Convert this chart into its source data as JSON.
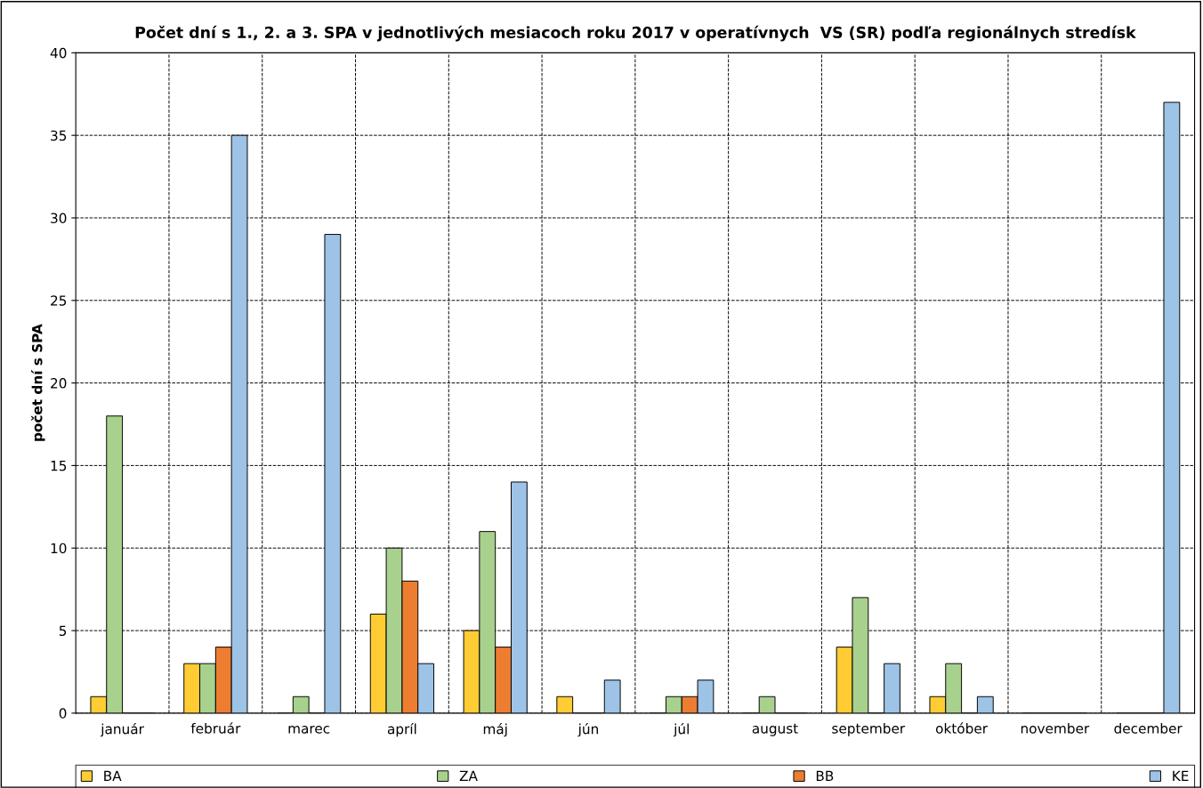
{
  "chart_data": {
    "type": "bar",
    "title": "Počet dní s 1., 2. a 3. SPA v jednotlivých mesiacoch roku 2017 v operatívnych  VS (SR) podľa regionálnych stredísk",
    "ylabel": "počet dní s SPA",
    "categories": [
      "január",
      "február",
      "marec",
      "apríl",
      "máj",
      "jún",
      "júl",
      "august",
      "september",
      "október",
      "november",
      "december"
    ],
    "series": [
      {
        "name": "BA",
        "color": "#ffcc33",
        "values": [
          1,
          3,
          0,
          6,
          5,
          1,
          0,
          0,
          4,
          1,
          0,
          0
        ]
      },
      {
        "name": "ZA",
        "color": "#a9d18e",
        "values": [
          18,
          3,
          1,
          10,
          11,
          0,
          1,
          1,
          7,
          3,
          0,
          0
        ]
      },
      {
        "name": "BB",
        "color": "#ed7d31",
        "values": [
          0,
          4,
          0,
          8,
          4,
          0,
          1,
          0,
          0,
          0,
          0,
          0
        ]
      },
      {
        "name": "KE",
        "color": "#9dc3e6",
        "values": [
          0,
          35,
          29,
          3,
          14,
          2,
          2,
          0,
          3,
          1,
          0,
          37
        ]
      }
    ],
    "ylim": [
      0,
      40
    ],
    "yticks": [
      0,
      5,
      10,
      15,
      20,
      25,
      30,
      35,
      40
    ],
    "grid": true,
    "line_style": "dashed",
    "legend": "bottom"
  }
}
